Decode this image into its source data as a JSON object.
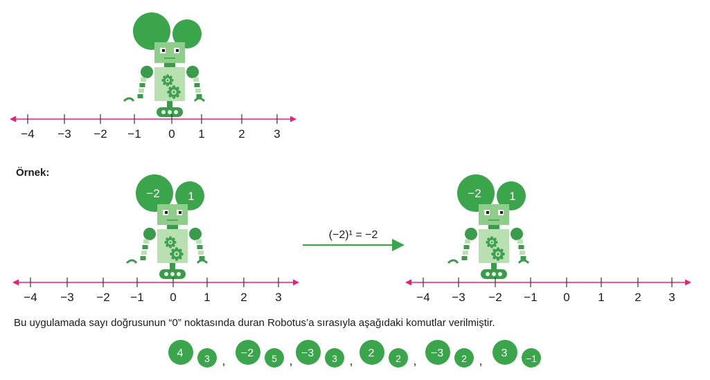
{
  "colors": {
    "robot_dark": "#3a9c4a",
    "robot_body": "#8fce8a",
    "robot_light": "#b9e0b0",
    "robot_face": "#cfe8c6",
    "gear": "#3e9e52",
    "bubble": "#3aa54a",
    "axis": "#e8207a",
    "arrow": "#3aa54a",
    "text": "#1a1a1a"
  },
  "number_line_labels": [
    "−4",
    "−3",
    "−2",
    "−1",
    "0",
    "1",
    "2",
    "3"
  ],
  "example": {
    "label": "Örnek:",
    "left_bubbles": [
      "−2",
      "1"
    ],
    "right_bubbles": [
      "−2",
      "1"
    ],
    "arrow_label": "(−2)¹ = −2"
  },
  "instruction": "Bu uygulamada sayı doğrusunun “0” noktasında duran Robotus’a sırasıyla aşağıdaki komutlar verilmiştir.",
  "separator": ",",
  "commands": [
    {
      "big": "4",
      "small": "3"
    },
    {
      "big": "−2",
      "small": "5"
    },
    {
      "big": "−3",
      "small": "3"
    },
    {
      "big": "2",
      "small": "2"
    },
    {
      "big": "−3",
      "small": "2"
    },
    {
      "big": "3",
      "small": "−1"
    }
  ]
}
